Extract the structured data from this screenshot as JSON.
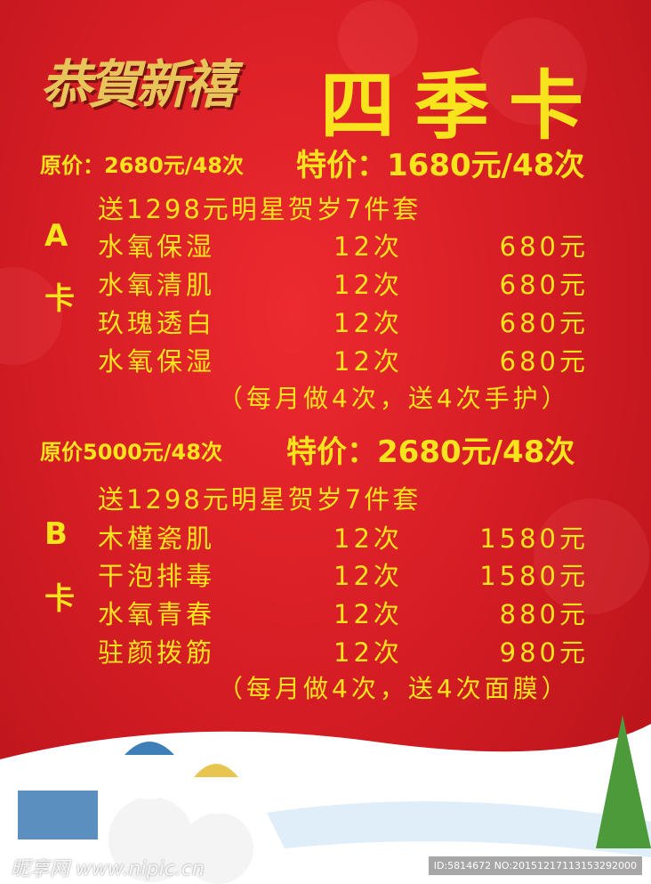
{
  "header": {
    "logo_text": "恭賀新禧",
    "title": "四季卡"
  },
  "card_a": {
    "letter": "A",
    "card_label": "卡",
    "original_price": "原价：2680元/48次",
    "special_price": "特价：1680元/48次",
    "gift": "送1298元明星贺岁7件套",
    "items": [
      {
        "name": "水氧保湿",
        "count": "12次",
        "price": "680元"
      },
      {
        "name": "水氧清肌",
        "count": "12次",
        "price": "680元"
      },
      {
        "name": "玖瑰透白",
        "count": "12次",
        "price": "680元"
      },
      {
        "name": "水氧保湿",
        "count": "12次",
        "price": "680元"
      }
    ],
    "note": "（每月做4次，送4次手护）"
  },
  "card_b": {
    "letter": "B",
    "card_label": "卡",
    "original_price": "原价5000元/48次",
    "special_price": "特价：2680元/48次",
    "gift": "送1298元明星贺岁7件套",
    "items": [
      {
        "name": "木槿瓷肌",
        "count": "12次",
        "price": "1580元"
      },
      {
        "name": "干泡排毒",
        "count": "12次",
        "price": "1580元"
      },
      {
        "name": "水氧青春",
        "count": "12次",
        "price": "880元"
      },
      {
        "name": "驻颜拨筋",
        "count": "12次",
        "price": "980元"
      }
    ],
    "note": "（每月做4次，送4次面膜）"
  },
  "watermark": {
    "site": "昵享网 www.nipic.cn",
    "id": "ID:5814672 NO:20151217113153292000"
  },
  "colors": {
    "text": "#f7e41c",
    "background": "#d41c24"
  }
}
